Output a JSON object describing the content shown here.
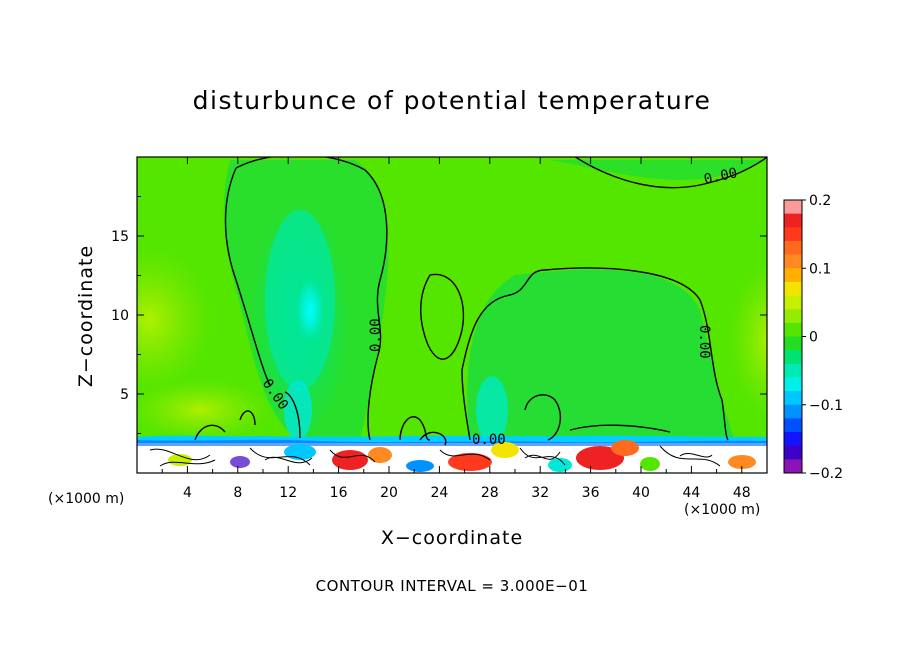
{
  "chart_data": {
    "type": "heatmap",
    "title": "disturbunce of potential temperature",
    "xlabel": "X−coordinate",
    "ylabel": "Z−coordinate",
    "x_unit_left": "(×1000 m)",
    "x_unit_right": "(×1000 m)",
    "footnote": "CONTOUR INTERVAL = 3.000E−01",
    "xlim": [
      0,
      50
    ],
    "ylim": [
      0,
      20
    ],
    "x_ticks": [
      4,
      8,
      12,
      16,
      20,
      24,
      28,
      32,
      36,
      40,
      44,
      48
    ],
    "y_ticks": [
      5,
      10,
      15
    ],
    "contour_label": "0.00",
    "colorbar": {
      "range": [
        -0.2,
        0.2
      ],
      "tick_labels": [
        "0.2",
        "0.1",
        "0",
        "−0.1",
        "−0.2"
      ],
      "tick_values": [
        0.2,
        0.1,
        0,
        -0.1,
        -0.2
      ],
      "colors": [
        "#fb9a9a",
        "#ee2222",
        "#ff3a1c",
        "#ff6a1e",
        "#ff8a22",
        "#ffb000",
        "#f3e400",
        "#c7f000",
        "#95ec00",
        "#55e600",
        "#22dd22",
        "#00e272",
        "#00eab4",
        "#00f0e8",
        "#00c8ff",
        "#0092ff",
        "#0050ff",
        "#1414ff",
        "#3c00c8",
        "#8c14b4"
      ]
    },
    "background_value": 0.02
  }
}
